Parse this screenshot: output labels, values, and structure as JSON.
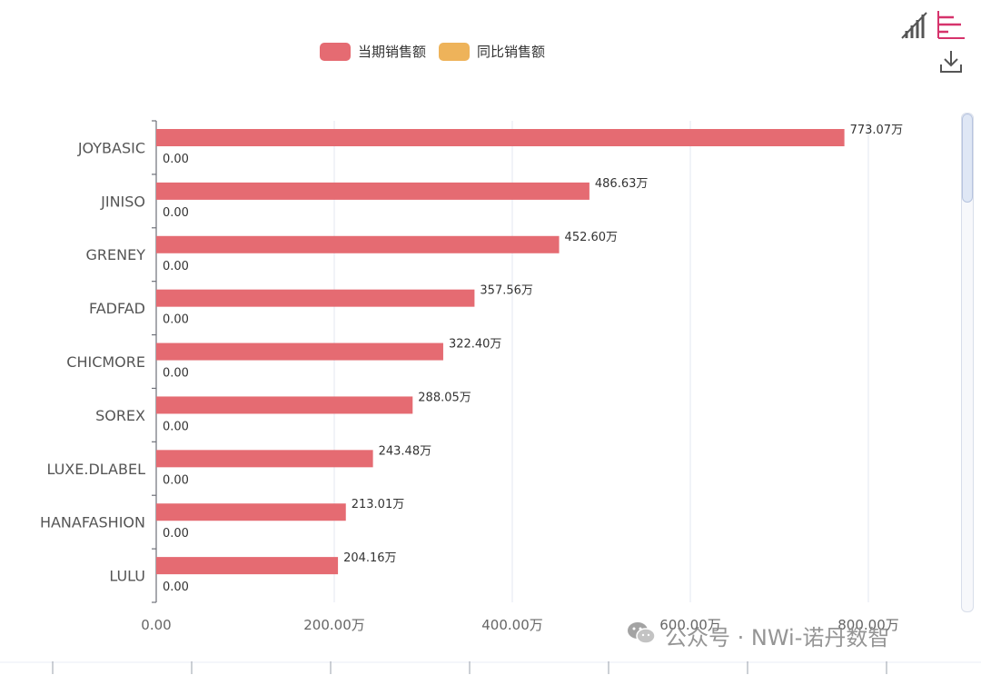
{
  "chart_data": {
    "type": "bar",
    "orientation": "horizontal",
    "categories": [
      "JOYBASIC",
      "JINISO",
      "GRENEY",
      "FADFAD",
      "CHICMORE",
      "SOREX",
      "LUXE.DLABEL",
      "HANAFASHION",
      "LULU"
    ],
    "series": [
      {
        "name": "当期销售额",
        "color": "#e56b72",
        "values": [
          773.07,
          486.63,
          452.6,
          357.56,
          322.4,
          288.05,
          243.48,
          213.01,
          204.16
        ],
        "labels": [
          "773.07万",
          "486.63万",
          "452.60万",
          "357.56万",
          "322.40万",
          "288.05万",
          "243.48万",
          "213.01万",
          "204.16万"
        ]
      },
      {
        "name": "同比销售额",
        "color": "#eeb35a",
        "values": [
          0,
          0,
          0,
          0,
          0,
          0,
          0,
          0,
          0
        ],
        "labels": [
          "0.00",
          "0.00",
          "0.00",
          "0.00",
          "0.00",
          "0.00",
          "0.00",
          "0.00",
          "0.00"
        ]
      }
    ],
    "x_ticks": [
      0,
      200,
      400,
      600,
      800
    ],
    "x_tick_labels": [
      "0.00",
      "200.00万",
      "400.00万",
      "600.00万",
      "800.00万"
    ],
    "xlim": [
      0,
      800
    ],
    "grid": true,
    "legend_position": "top-center"
  },
  "toolbox": {
    "bar_chart_icon": "bar-chart-switch-icon",
    "horizontal_bar_icon": "horizontal-bar-switch-icon",
    "download_icon": "download-icon"
  },
  "watermark": {
    "text": "公众号 · NWi-诺丹数智",
    "icon": "wechat-icon"
  }
}
